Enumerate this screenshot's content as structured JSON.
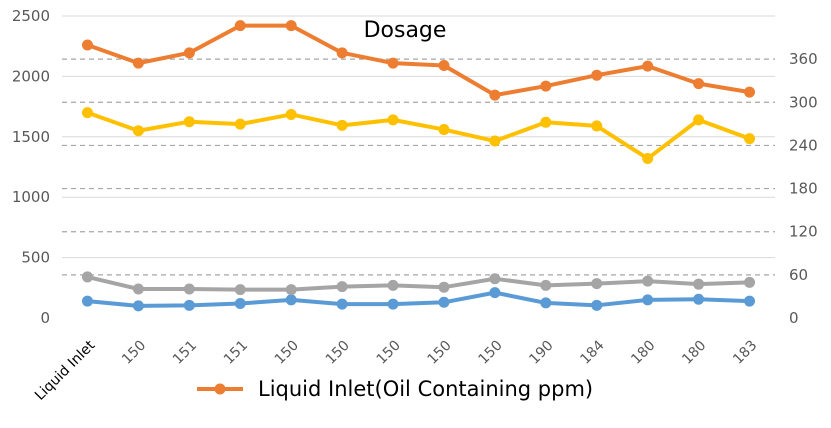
{
  "chart_data": {
    "type": "line",
    "title": "Dosage",
    "categories": [
      "Liquid Inlet",
      "150",
      "151",
      "151",
      "150",
      "150",
      "150",
      "150",
      "150",
      "190",
      "184",
      "180",
      "180",
      "183"
    ],
    "series": [
      {
        "name": "Liquid Inlet(Oil Containing ppm)",
        "axis": "left",
        "color": "#ED7D31",
        "values": [
          2260,
          2110,
          2195,
          2420,
          2420,
          2195,
          2110,
          2090,
          1845,
          1920,
          2010,
          2085,
          1940,
          1870
        ]
      },
      {
        "name": "",
        "axis": "left",
        "color": "#FFC000",
        "values": [
          1700,
          1550,
          1625,
          1605,
          1685,
          1595,
          1640,
          1560,
          1465,
          1620,
          1590,
          1320,
          1640,
          1485
        ]
      },
      {
        "name": "",
        "axis": "left",
        "color": "#A5A5A5",
        "values": [
          340,
          240,
          240,
          235,
          235,
          260,
          270,
          255,
          325,
          270,
          285,
          305,
          280,
          295
        ]
      },
      {
        "name": "",
        "axis": "left",
        "color": "#5B9BD5",
        "values": [
          140,
          100,
          105,
          120,
          150,
          115,
          115,
          130,
          210,
          125,
          105,
          150,
          155,
          140
        ]
      }
    ],
    "left_axis": {
      "ylim": [
        0,
        2500
      ],
      "ticks": [
        "0",
        "500",
        "1000",
        "1500",
        "2000",
        "2500"
      ]
    },
    "right_axis": {
      "ylim": [
        0,
        420
      ],
      "ticks": [
        "0",
        "60",
        "120",
        "180",
        "240",
        "300",
        "360"
      ]
    },
    "legend": {
      "position": "bottom",
      "entries": [
        "Liquid Inlet(Oil Containing ppm)"
      ]
    },
    "grid": {
      "left_solid": true,
      "right_dashed": true
    },
    "xlabel": "",
    "ylabel": "",
    "colors": {
      "grid_solid": "#D9D9D9",
      "grid_dashed": "#A6A6A6",
      "tick_text": "#595959"
    }
  }
}
